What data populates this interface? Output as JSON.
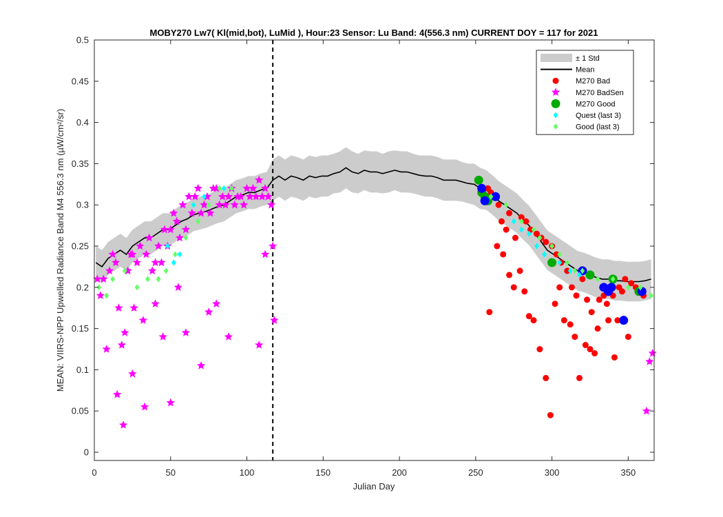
{
  "chart_data": {
    "type": "scatter",
    "title": "MOBY270   Lw7( Kl(mid,bot), LuMid ),   Hour:23 Sensor: Lu Band: 4(556.3 nm)   CURRENT DOY = 117 for 2021",
    "xlabel": "Julian Day",
    "ylabel": "MEAN: VIIRS-NPP Upwelled Radiance Band M4 556.3 nm (µW/cm²/sr)",
    "xlim": [
      0,
      367
    ],
    "ylim": [
      -0.01,
      0.5
    ],
    "xticks": [
      0,
      50,
      100,
      150,
      200,
      250,
      300,
      350
    ],
    "yticks": [
      0,
      0.05,
      0.1,
      0.15,
      0.2,
      0.25,
      0.3,
      0.35,
      0.4,
      0.45,
      0.5
    ],
    "xtick_labels": [
      "0",
      "50",
      "100",
      "150",
      "200",
      "250",
      "300",
      "350"
    ],
    "ytick_labels": [
      "0",
      "0.05",
      "0.1",
      "0.15",
      "0.2",
      "0.25",
      "0.3",
      "0.35",
      "0.4",
      "0.45",
      "0.5"
    ],
    "current_doy": 117,
    "grid": false,
    "legend_position": "top-right",
    "legend": [
      {
        "label": "± 1 Std",
        "kind": "band",
        "color": "#cccccc"
      },
      {
        "label": "Mean",
        "kind": "line",
        "color": "#000000"
      },
      {
        "label": "M270 Bad",
        "kind": "dot",
        "color": "#ff0000"
      },
      {
        "label": "M270 BadSen",
        "kind": "star",
        "color": "#ff00ff"
      },
      {
        "label": "M270 Good",
        "kind": "bigdot",
        "color": "#00aa00"
      },
      {
        "label": "Quest (last 3)",
        "kind": "diamond",
        "color": "#00ffff"
      },
      {
        "label": "Good (last 3)",
        "kind": "diamond",
        "color": "#66ff66"
      }
    ],
    "mean_series": {
      "x": [
        1,
        5,
        9,
        13,
        17,
        21,
        25,
        29,
        33,
        37,
        41,
        45,
        49,
        53,
        57,
        61,
        65,
        69,
        73,
        77,
        81,
        85,
        89,
        93,
        97,
        101,
        105,
        109,
        113,
        117,
        121,
        125,
        129,
        133,
        137,
        141,
        145,
        149,
        153,
        157,
        161,
        165,
        169,
        173,
        177,
        181,
        185,
        189,
        193,
        197,
        201,
        205,
        209,
        213,
        217,
        221,
        225,
        229,
        233,
        237,
        241,
        245,
        249,
        253,
        257,
        261,
        265,
        269,
        273,
        277,
        281,
        285,
        289,
        293,
        297,
        301,
        305,
        309,
        313,
        317,
        321,
        325,
        329,
        333,
        337,
        341,
        345,
        349,
        353,
        357,
        361,
        365
      ],
      "y": [
        0.23,
        0.225,
        0.235,
        0.24,
        0.245,
        0.24,
        0.25,
        0.255,
        0.26,
        0.26,
        0.265,
        0.27,
        0.27,
        0.275,
        0.28,
        0.283,
        0.288,
        0.29,
        0.292,
        0.295,
        0.298,
        0.3,
        0.305,
        0.31,
        0.312,
        0.315,
        0.315,
        0.318,
        0.32,
        0.33,
        0.335,
        0.33,
        0.335,
        0.333,
        0.33,
        0.335,
        0.333,
        0.335,
        0.335,
        0.338,
        0.34,
        0.345,
        0.34,
        0.338,
        0.342,
        0.34,
        0.34,
        0.338,
        0.34,
        0.342,
        0.34,
        0.34,
        0.338,
        0.336,
        0.335,
        0.335,
        0.333,
        0.33,
        0.33,
        0.33,
        0.328,
        0.326,
        0.325,
        0.32,
        0.318,
        0.312,
        0.305,
        0.3,
        0.295,
        0.29,
        0.282,
        0.275,
        0.265,
        0.255,
        0.245,
        0.24,
        0.235,
        0.23,
        0.225,
        0.22,
        0.218,
        0.215,
        0.212,
        0.21,
        0.21,
        0.208,
        0.208,
        0.207,
        0.207,
        0.207,
        0.208,
        0.21
      ]
    },
    "std_band": {
      "upper": [
        0.25,
        0.245,
        0.255,
        0.26,
        0.265,
        0.26,
        0.27,
        0.275,
        0.28,
        0.28,
        0.285,
        0.29,
        0.29,
        0.295,
        0.3,
        0.303,
        0.308,
        0.31,
        0.312,
        0.315,
        0.318,
        0.32,
        0.325,
        0.33,
        0.332,
        0.335,
        0.335,
        0.338,
        0.34,
        0.355,
        0.36,
        0.355,
        0.36,
        0.358,
        0.355,
        0.36,
        0.358,
        0.36,
        0.36,
        0.362,
        0.365,
        0.37,
        0.365,
        0.362,
        0.366,
        0.365,
        0.365,
        0.362,
        0.365,
        0.366,
        0.365,
        0.365,
        0.362,
        0.36,
        0.36,
        0.36,
        0.358,
        0.355,
        0.355,
        0.355,
        0.352,
        0.35,
        0.35,
        0.345,
        0.342,
        0.336,
        0.329,
        0.324,
        0.319,
        0.314,
        0.306,
        0.299,
        0.289,
        0.279,
        0.269,
        0.264,
        0.259,
        0.254,
        0.249,
        0.244,
        0.242,
        0.239,
        0.236,
        0.234,
        0.234,
        0.232,
        0.232,
        0.231,
        0.231,
        0.231,
        0.232,
        0.234
      ],
      "lower": [
        0.21,
        0.205,
        0.215,
        0.22,
        0.225,
        0.22,
        0.23,
        0.235,
        0.24,
        0.24,
        0.245,
        0.25,
        0.25,
        0.255,
        0.26,
        0.263,
        0.268,
        0.27,
        0.272,
        0.275,
        0.278,
        0.28,
        0.285,
        0.29,
        0.292,
        0.295,
        0.295,
        0.298,
        0.3,
        0.305,
        0.31,
        0.305,
        0.31,
        0.308,
        0.305,
        0.31,
        0.308,
        0.31,
        0.31,
        0.314,
        0.315,
        0.32,
        0.315,
        0.314,
        0.318,
        0.315,
        0.315,
        0.314,
        0.315,
        0.318,
        0.315,
        0.315,
        0.314,
        0.312,
        0.31,
        0.31,
        0.308,
        0.305,
        0.305,
        0.305,
        0.304,
        0.302,
        0.3,
        0.295,
        0.294,
        0.288,
        0.281,
        0.276,
        0.271,
        0.266,
        0.258,
        0.251,
        0.241,
        0.231,
        0.221,
        0.216,
        0.211,
        0.206,
        0.201,
        0.196,
        0.194,
        0.191,
        0.188,
        0.186,
        0.186,
        0.184,
        0.184,
        0.183,
        0.183,
        0.183,
        0.184,
        0.186
      ]
    },
    "series": [
      {
        "name": "M270 Bad",
        "kind": "dot",
        "color": "#ff0000",
        "x": [
          258,
          260,
          263,
          265,
          267,
          270,
          272,
          276,
          280,
          283,
          286,
          290,
          293,
          296,
          300,
          303,
          306,
          310,
          313,
          316,
          320,
          323,
          326,
          330,
          333,
          336,
          340,
          343,
          346,
          350,
          355,
          360,
          259,
          264,
          268,
          272,
          275,
          279,
          282,
          285,
          288,
          292,
          296,
          299,
          302,
          305,
          308,
          312,
          315,
          318,
          322,
          325,
          328,
          331,
          334,
          337,
          341,
          344,
          348,
          352,
          356
        ],
        "y": [
          0.32,
          0.315,
          0.31,
          0.3,
          0.28,
          0.27,
          0.29,
          0.26,
          0.285,
          0.28,
          0.27,
          0.265,
          0.26,
          0.255,
          0.25,
          0.24,
          0.23,
          0.22,
          0.2,
          0.19,
          0.21,
          0.185,
          0.17,
          0.15,
          0.2,
          0.18,
          0.19,
          0.16,
          0.195,
          0.14,
          0.2,
          0.19,
          0.17,
          0.25,
          0.24,
          0.215,
          0.2,
          0.22,
          0.195,
          0.165,
          0.16,
          0.125,
          0.09,
          0.045,
          0.18,
          0.2,
          0.16,
          0.155,
          0.14,
          0.09,
          0.13,
          0.125,
          0.12,
          0.185,
          0.19,
          0.16,
          0.115,
          0.2,
          0.21,
          0.205,
          0.198
        ]
      },
      {
        "name": "M270 BadSen",
        "kind": "star",
        "color": "#ff00ff",
        "x": [
          2,
          4,
          6,
          8,
          10,
          12,
          14,
          16,
          18,
          20,
          22,
          24,
          26,
          28,
          30,
          32,
          34,
          36,
          38,
          40,
          42,
          44,
          46,
          48,
          50,
          52,
          54,
          56,
          58,
          60,
          62,
          64,
          66,
          68,
          70,
          72,
          74,
          76,
          78,
          80,
          82,
          84,
          86,
          88,
          90,
          92,
          94,
          96,
          98,
          100,
          102,
          104,
          106,
          108,
          110,
          112,
          114,
          116,
          117,
          118,
          15,
          19,
          25,
          33,
          45,
          50,
          60,
          70,
          75,
          88,
          108,
          112,
          364,
          366,
          362,
          25,
          40,
          55,
          80
        ],
        "y": [
          0.21,
          0.19,
          0.21,
          0.125,
          0.22,
          0.24,
          0.23,
          0.175,
          0.13,
          0.145,
          0.22,
          0.24,
          0.175,
          0.23,
          0.25,
          0.16,
          0.24,
          0.26,
          0.22,
          0.23,
          0.25,
          0.23,
          0.27,
          0.25,
          0.27,
          0.29,
          0.28,
          0.26,
          0.3,
          0.27,
          0.31,
          0.29,
          0.31,
          0.32,
          0.29,
          0.3,
          0.31,
          0.29,
          0.32,
          0.32,
          0.3,
          0.31,
          0.3,
          0.31,
          0.32,
          0.3,
          0.31,
          0.31,
          0.3,
          0.32,
          0.31,
          0.32,
          0.31,
          0.33,
          0.31,
          0.32,
          0.31,
          0.3,
          0.25,
          0.16,
          0.07,
          0.033,
          0.095,
          0.055,
          0.14,
          0.06,
          0.145,
          0.105,
          0.17,
          0.14,
          0.13,
          0.24,
          0.11,
          0.12,
          0.05,
          0.24,
          0.18,
          0.2,
          0.18
        ]
      },
      {
        "name": "M270 Good",
        "kind": "bigdot",
        "color": "#00aa00",
        "x": [
          252,
          254,
          256,
          258,
          300,
          325,
          340,
          357
        ],
        "y": [
          0.33,
          0.315,
          0.31,
          0.305,
          0.23,
          0.215,
          0.21,
          0.195
        ]
      },
      {
        "name": "blue",
        "kind": "bigdot",
        "color": "#0000ff",
        "x": [
          254,
          256,
          263,
          320,
          334,
          337,
          339,
          347,
          359
        ],
        "y": [
          0.32,
          0.305,
          0.31,
          0.22,
          0.2,
          0.195,
          0.2,
          0.16,
          0.195
        ]
      },
      {
        "name": "Quest (last 3)",
        "kind": "diamond",
        "color": "#00ffff",
        "x": [
          48,
          52,
          56,
          65,
          72,
          85,
          275,
          280,
          285,
          290,
          295,
          305,
          312,
          318
        ],
        "y": [
          0.25,
          0.23,
          0.24,
          0.3,
          0.31,
          0.32,
          0.28,
          0.27,
          0.265,
          0.25,
          0.24,
          0.23,
          0.22,
          0.215
        ]
      },
      {
        "name": "Good (last 3)",
        "kind": "diamond",
        "color": "#66ff66",
        "x": [
          3,
          8,
          12,
          20,
          28,
          35,
          42,
          47,
          53,
          60,
          68,
          75,
          82,
          90,
          260,
          270,
          280,
          288,
          292,
          300,
          305,
          310,
          315,
          320,
          330,
          340,
          350,
          358,
          365
        ],
        "y": [
          0.2,
          0.19,
          0.21,
          0.22,
          0.2,
          0.21,
          0.21,
          0.22,
          0.24,
          0.26,
          0.28,
          0.3,
          0.32,
          0.32,
          0.31,
          0.3,
          0.28,
          0.27,
          0.26,
          0.25,
          0.24,
          0.23,
          0.22,
          0.22,
          0.21,
          0.21,
          0.2,
          0.2,
          0.19
        ]
      }
    ]
  }
}
